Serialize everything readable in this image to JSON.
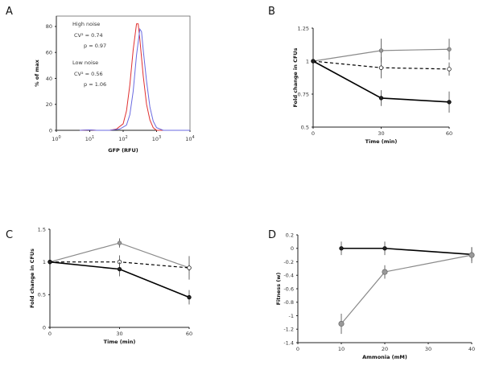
{
  "chart_data": [
    {
      "panel": "A",
      "type": "line",
      "xlabel": "GFP (RFU)",
      "ylabel": "% of max",
      "xscale": "log",
      "xlim": [
        1,
        10000
      ],
      "ylim": [
        0,
        88
      ],
      "xticks": [
        "10",
        "10",
        "10",
        "10",
        "10"
      ],
      "xtick_exp": [
        "0",
        "1",
        "2",
        "3",
        "4"
      ],
      "yticks": [
        "0",
        "20",
        "40",
        "60",
        "80"
      ],
      "series": [
        {
          "name": "High noise",
          "color": "#e03030",
          "stats": [
            "CV² = 0.74",
            "p = 0.97"
          ],
          "points_log10x": [
            [
              0.7,
              0
            ],
            [
              1.0,
              0.3
            ],
            [
              1.2,
              0
            ],
            [
              1.6,
              0
            ],
            [
              1.8,
              1
            ],
            [
              2.0,
              5
            ],
            [
              2.1,
              15
            ],
            [
              2.2,
              35
            ],
            [
              2.3,
              62
            ],
            [
              2.4,
              82
            ],
            [
              2.45,
              82
            ],
            [
              2.5,
              70
            ],
            [
              2.6,
              42
            ],
            [
              2.7,
              20
            ],
            [
              2.8,
              8
            ],
            [
              2.9,
              2
            ],
            [
              3.0,
              0
            ],
            [
              4,
              0
            ]
          ]
        },
        {
          "name": "Low noise",
          "color": "#6a6ae0",
          "stats": [
            "CV² = 0.56",
            "p = 1.06"
          ],
          "points_log10x": [
            [
              0.7,
              0
            ],
            [
              1.0,
              0.3
            ],
            [
              1.2,
              0
            ],
            [
              1.6,
              0
            ],
            [
              1.9,
              1
            ],
            [
              2.1,
              4
            ],
            [
              2.2,
              12
            ],
            [
              2.3,
              30
            ],
            [
              2.4,
              58
            ],
            [
              2.5,
              78
            ],
            [
              2.55,
              76
            ],
            [
              2.6,
              62
            ],
            [
              2.7,
              38
            ],
            [
              2.8,
              18
            ],
            [
              2.9,
              7
            ],
            [
              3.0,
              2
            ],
            [
              3.2,
              0
            ],
            [
              4,
              0
            ]
          ]
        }
      ]
    },
    {
      "panel": "B",
      "type": "line",
      "xlabel": "Time (min)",
      "ylabel": "Fold change in CFUs",
      "xlim": [
        0,
        60
      ],
      "ylim": [
        0.5,
        1.25
      ],
      "x": [
        0,
        30,
        60
      ],
      "xticks": [
        "0",
        "30",
        "60"
      ],
      "yticks": [
        "0.5",
        "0.75",
        "1",
        "1.25"
      ],
      "series": [
        {
          "name": "gray",
          "style": "gray-solid",
          "values": [
            1,
            1.08,
            1.09
          ],
          "err": [
            0,
            0.09,
            0.08
          ]
        },
        {
          "name": "open",
          "style": "dashed-open",
          "values": [
            1,
            0.95,
            0.94
          ],
          "err": [
            0,
            0.08,
            0.05
          ]
        },
        {
          "name": "black",
          "style": "black-solid",
          "values": [
            1,
            0.72,
            0.69
          ],
          "err": [
            0,
            0.06,
            0.08
          ]
        }
      ]
    },
    {
      "panel": "C",
      "type": "line",
      "xlabel": "Time (min)",
      "ylabel": "Fold change in CFUs",
      "xlim": [
        0,
        60
      ],
      "ylim": [
        0,
        1.5
      ],
      "x": [
        0,
        30,
        60
      ],
      "xticks": [
        "0",
        "30",
        "60"
      ],
      "yticks": [
        "0",
        "0.5",
        "1",
        "1.5"
      ],
      "series": [
        {
          "name": "gray",
          "style": "gray-solid",
          "values": [
            1,
            1.29,
            0.91
          ],
          "err": [
            0,
            0.07,
            0.18
          ]
        },
        {
          "name": "open",
          "style": "dashed-open",
          "values": [
            1,
            1.0,
            0.91
          ],
          "err": [
            0,
            0.1,
            0.05
          ]
        },
        {
          "name": "black",
          "style": "black-solid",
          "values": [
            1,
            0.89,
            0.46
          ],
          "err": [
            0,
            0.11,
            0.11
          ]
        }
      ]
    },
    {
      "panel": "D",
      "type": "line",
      "xlabel": "Ammonia (mM)",
      "ylabel": "Fitness (w)",
      "xlim": [
        0,
        40
      ],
      "ylim": [
        -1.4,
        0.2
      ],
      "x": [
        10,
        20,
        40
      ],
      "xticks": [
        "0",
        "10",
        "20",
        "30",
        "40"
      ],
      "yticks": [
        "-1.4",
        "-1.2",
        "-1",
        "-0.8",
        "-0.6",
        "-0.4",
        "-0.2",
        "0",
        "0.2"
      ],
      "series": [
        {
          "name": "black",
          "style": "black-solid",
          "values": [
            0,
            0,
            -0.09
          ],
          "err": [
            0.1,
            0.1,
            0.1
          ]
        },
        {
          "name": "gray",
          "style": "gray-solid-big",
          "values": [
            -1.12,
            -0.35,
            -0.1
          ],
          "err": [
            0.15,
            0.1,
            0.12
          ]
        }
      ]
    }
  ],
  "panel_labels": [
    "A",
    "B",
    "C",
    "D"
  ]
}
